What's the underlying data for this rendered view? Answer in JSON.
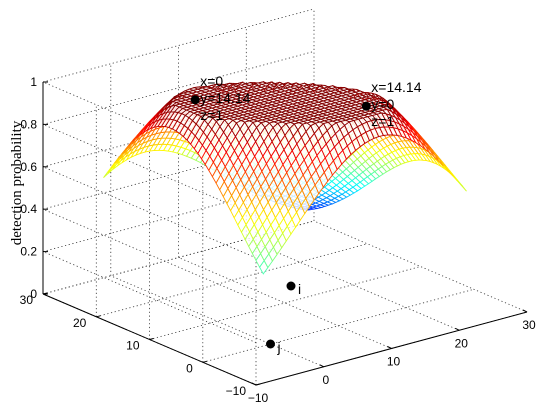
{
  "chart_data": {
    "type": "surface",
    "title": "",
    "xlabel": "",
    "ylabel": "",
    "zlabel": "detection probability",
    "xlim": [
      -10,
      30
    ],
    "ylim": [
      -10,
      30
    ],
    "zlim": [
      0,
      1
    ],
    "x_ticks": [
      "−10",
      "0",
      "10",
      "20",
      "30"
    ],
    "y_ticks": [
      "−10",
      "0",
      "10",
      "20",
      "30"
    ],
    "z_ticks": [
      "0",
      "0.2",
      "0.4",
      "0.6",
      "0.8",
      "1"
    ],
    "grid": true,
    "colormap": "jet",
    "surface": {
      "x_range": [
        -5,
        25
      ],
      "y_range": [
        -5,
        25
      ],
      "peaks": [
        {
          "x": 0,
          "y": 14.14,
          "z": 1
        },
        {
          "x": 14.14,
          "y": 0,
          "z": 1
        }
      ]
    },
    "sensors": [
      {
        "label": "j",
        "x": 0,
        "y": 0
      },
      {
        "label": "i",
        "x": 14.14,
        "y": 14.14
      }
    ],
    "annotations": [
      {
        "lines": [
          "x=0",
          "y=14.14",
          "z=1"
        ]
      },
      {
        "lines": [
          "x=14.14",
          "y=0",
          "z=1"
        ]
      }
    ],
    "colors": {
      "marker": "#000000",
      "grid": "#333333"
    }
  }
}
